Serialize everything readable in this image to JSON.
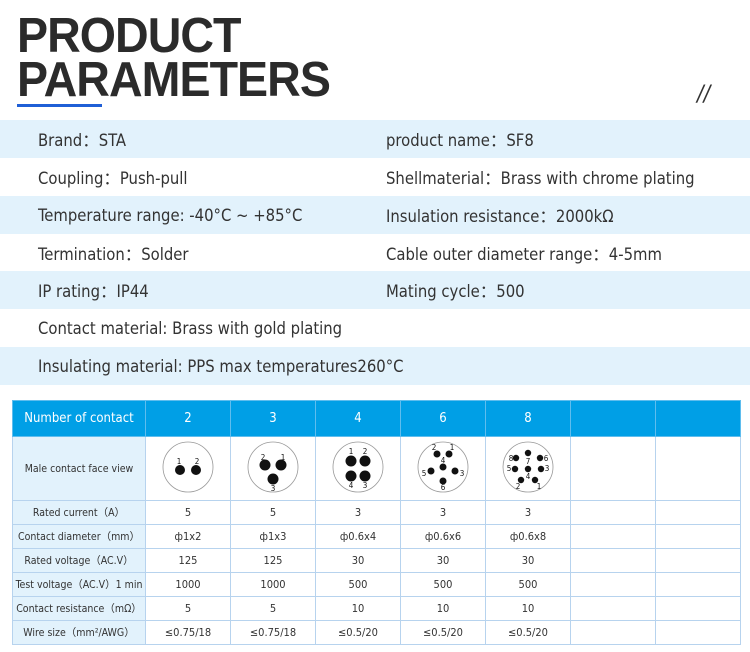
{
  "header": {
    "line1": "PRODUCT",
    "line2": "PARAMETERS",
    "decor": "//",
    "accent": "#1f5fd6"
  },
  "params": [
    {
      "left": "Brand：STA",
      "right": "product name：SF8"
    },
    {
      "left": "Coupling：Push-pull",
      "right": "Shellmaterial：Brass with chrome plating"
    },
    {
      "left": "Temperature range: -40°C ~ +85°C",
      "right": "Insulation resistance：2000kΩ"
    },
    {
      "left": "Termination：Solder",
      "right": "Cable outer diameter range：4-5mm"
    },
    {
      "left": "IP rating：IP44",
      "right": "Mating cycle：500"
    },
    {
      "left": "Contact material: Brass with gold plating",
      "right": ""
    },
    {
      "left": "Insulating material: PPS max temperatures260°C",
      "right": ""
    }
  ],
  "table": {
    "header": [
      "Number of contact",
      "2",
      "3",
      "4",
      "6",
      "8",
      "",
      ""
    ],
    "face_label": "Male contact face view",
    "faces": [
      [
        "1",
        "2"
      ],
      [
        "2",
        "1",
        "3"
      ],
      [
        "1",
        "2",
        "4",
        "3"
      ],
      [
        "2",
        "1",
        "4",
        "5",
        "3",
        "6"
      ],
      [
        "8",
        "7",
        "6",
        "5",
        "4",
        "3",
        "2",
        "1"
      ]
    ],
    "rows": [
      [
        "Rated current（A）",
        "5",
        "5",
        "3",
        "3",
        "3",
        "",
        ""
      ],
      [
        "Contact diameter（mm）",
        "ф1x2",
        "ф1x3",
        "ф0.6x4",
        "ф0.6x6",
        "ф0.6x8",
        "",
        ""
      ],
      [
        "Rated voltage（AC.V）",
        "125",
        "125",
        "30",
        "30",
        "30",
        "",
        ""
      ],
      [
        "Test voltage（AC.V）1 min",
        "1000",
        "1000",
        "500",
        "500",
        "500",
        "",
        ""
      ],
      [
        "Contact resistance（mΩ）",
        "5",
        "5",
        "10",
        "10",
        "10",
        "",
        ""
      ],
      [
        "Wire size（mm²/AWG）",
        "≤0.75/18",
        "≤0.75/18",
        "≤0.5/20",
        "≤0.5/20",
        "≤0.5/20",
        "",
        ""
      ]
    ],
    "header_color": "#009fe6"
  }
}
